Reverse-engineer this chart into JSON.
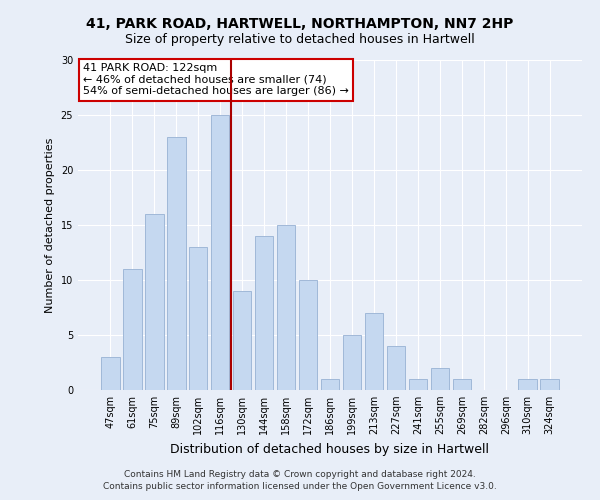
{
  "title1": "41, PARK ROAD, HARTWELL, NORTHAMPTON, NN7 2HP",
  "title2": "Size of property relative to detached houses in Hartwell",
  "xlabel": "Distribution of detached houses by size in Hartwell",
  "ylabel": "Number of detached properties",
  "bar_labels": [
    "47sqm",
    "61sqm",
    "75sqm",
    "89sqm",
    "102sqm",
    "116sqm",
    "130sqm",
    "144sqm",
    "158sqm",
    "172sqm",
    "186sqm",
    "199sqm",
    "213sqm",
    "227sqm",
    "241sqm",
    "255sqm",
    "269sqm",
    "282sqm",
    "296sqm",
    "310sqm",
    "324sqm"
  ],
  "bar_values": [
    3,
    11,
    16,
    23,
    13,
    25,
    9,
    14,
    15,
    10,
    1,
    5,
    7,
    4,
    1,
    2,
    1,
    0,
    0,
    1,
    1
  ],
  "bar_color": "#c5d8f0",
  "bar_edge_color": "#a0b8d8",
  "marker_after_index": 5,
  "marker_color": "#aa0000",
  "ylim": [
    0,
    30
  ],
  "yticks": [
    0,
    5,
    10,
    15,
    20,
    25,
    30
  ],
  "annotation_title": "41 PARK ROAD: 122sqm",
  "annotation_line1": "← 46% of detached houses are smaller (74)",
  "annotation_line2": "54% of semi-detached houses are larger (86) →",
  "annotation_box_color": "#ffffff",
  "annotation_box_edge": "#cc0000",
  "footer1": "Contains HM Land Registry data © Crown copyright and database right 2024.",
  "footer2": "Contains public sector information licensed under the Open Government Licence v3.0.",
  "bg_color": "#e8eef8",
  "plot_bg_color": "#e8eef8"
}
